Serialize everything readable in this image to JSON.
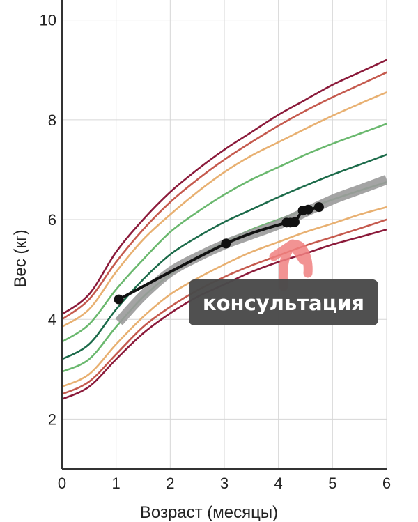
{
  "chart_data": {
    "type": "line",
    "xlabel": "Возраст (месяцы)",
    "ylabel": "Вес (кг)",
    "xlim": [
      0,
      6
    ],
    "ylim": [
      1.0,
      10.4
    ],
    "xticks": [
      0,
      1,
      2,
      3,
      4,
      5,
      6
    ],
    "yticks": [
      2,
      4,
      6,
      8,
      10
    ],
    "grid": true,
    "x": [
      0,
      0.5,
      1,
      1.5,
      2,
      2.5,
      3,
      3.5,
      4,
      4.5,
      5,
      5.5,
      6
    ],
    "percentile_curves": [
      {
        "color": "#8b1a3a",
        "values": [
          4.1,
          4.5,
          5.35,
          6.0,
          6.55,
          7.0,
          7.4,
          7.75,
          8.1,
          8.4,
          8.7,
          8.95,
          9.2
        ]
      },
      {
        "color": "#c55a4e",
        "values": [
          4.0,
          4.4,
          5.15,
          5.8,
          6.35,
          6.8,
          7.2,
          7.55,
          7.88,
          8.18,
          8.45,
          8.7,
          8.95
        ]
      },
      {
        "color": "#e8b071",
        "values": [
          3.85,
          4.2,
          4.95,
          5.6,
          6.1,
          6.55,
          6.95,
          7.28,
          7.55,
          7.82,
          8.08,
          8.32,
          8.55
        ]
      },
      {
        "color": "#6ab86e",
        "values": [
          3.55,
          3.9,
          4.6,
          5.2,
          5.75,
          6.15,
          6.5,
          6.8,
          7.05,
          7.3,
          7.52,
          7.72,
          7.92
        ]
      },
      {
        "color": "#1c6b4a",
        "values": [
          3.2,
          3.5,
          4.2,
          4.8,
          5.3,
          5.65,
          5.95,
          6.2,
          6.45,
          6.68,
          6.9,
          7.1,
          7.3
        ]
      },
      {
        "color": "#6ab86e",
        "values": [
          2.95,
          3.2,
          3.85,
          4.45,
          4.9,
          5.25,
          5.55,
          5.8,
          6.0,
          6.2,
          6.4,
          6.58,
          6.75
        ]
      },
      {
        "color": "#e8b071",
        "values": [
          2.65,
          2.9,
          3.5,
          4.05,
          4.5,
          4.82,
          5.1,
          5.35,
          5.55,
          5.75,
          5.92,
          6.1,
          6.25
        ]
      },
      {
        "color": "#c55a4e",
        "values": [
          2.5,
          2.75,
          3.3,
          3.85,
          4.25,
          4.58,
          4.85,
          5.08,
          5.28,
          5.48,
          5.65,
          5.82,
          6.0
        ]
      },
      {
        "color": "#8b1a3a",
        "values": [
          2.4,
          2.65,
          3.2,
          3.72,
          4.12,
          4.45,
          4.7,
          4.95,
          5.15,
          5.32,
          5.5,
          5.65,
          5.8
        ]
      }
    ],
    "trend_band": {
      "color": "#9a9a9a",
      "x": [
        1.05,
        1.5,
        2.0,
        2.5,
        3.0,
        3.5,
        4.0,
        4.5,
        5.0,
        5.5,
        6.0
      ],
      "values": [
        3.95,
        4.48,
        4.95,
        5.25,
        5.5,
        5.7,
        5.9,
        6.15,
        6.4,
        6.6,
        6.8
      ]
    },
    "series": [
      {
        "color": "#111111",
        "x": [
          1.05,
          3.03,
          4.15,
          4.22,
          4.3,
          4.45,
          4.55,
          4.75
        ],
        "values": [
          4.4,
          5.52,
          5.94,
          5.94,
          5.95,
          6.18,
          6.2,
          6.25
        ]
      }
    ],
    "annotation": {
      "text": "консультация",
      "x": 3.55,
      "y": 4.45,
      "bg_color": "#4a4a4a",
      "arrow_color": "#f08080"
    }
  }
}
